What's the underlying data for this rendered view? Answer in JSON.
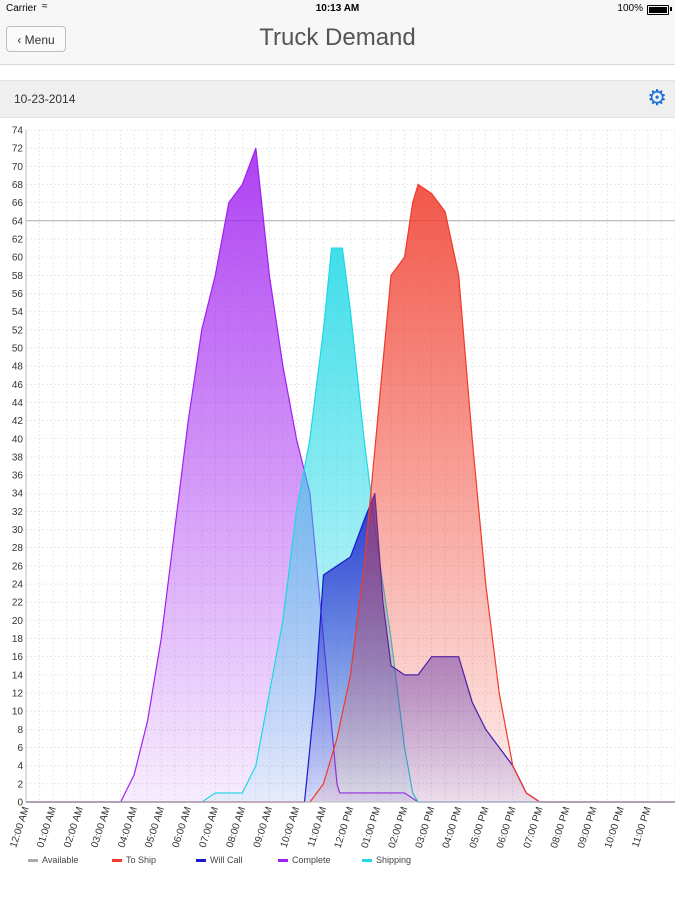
{
  "status_bar": {
    "carrier": "Carrier",
    "time": "10:13 AM",
    "battery": "100%"
  },
  "nav": {
    "back_label": "Menu",
    "title": "Truck Demand"
  },
  "date_bar": {
    "date": "10-23-2014"
  },
  "chart_data": {
    "type": "area",
    "title": "",
    "xlabel": "",
    "ylabel": "",
    "ylim": [
      0,
      74
    ],
    "y_ticks": [
      0,
      2,
      4,
      6,
      8,
      10,
      12,
      14,
      16,
      18,
      20,
      22,
      24,
      26,
      28,
      30,
      32,
      34,
      36,
      38,
      40,
      42,
      44,
      46,
      48,
      50,
      52,
      54,
      56,
      58,
      60,
      62,
      64,
      66,
      68,
      70,
      72,
      74
    ],
    "x_range": [
      0,
      24
    ],
    "x_ticks": [
      {
        "x": 0,
        "label": "12:00 AM"
      },
      {
        "x": 1,
        "label": "01:00 AM"
      },
      {
        "x": 2,
        "label": "02:00 AM"
      },
      {
        "x": 3,
        "label": "03:00 AM"
      },
      {
        "x": 4,
        "label": "04:00 AM"
      },
      {
        "x": 5,
        "label": "05:00 AM"
      },
      {
        "x": 6,
        "label": "06:00 AM"
      },
      {
        "x": 7,
        "label": "07:00 AM"
      },
      {
        "x": 8,
        "label": "08:00 AM"
      },
      {
        "x": 9,
        "label": "09:00 AM"
      },
      {
        "x": 10,
        "label": "10:00 AM"
      },
      {
        "x": 11,
        "label": "11:00 AM"
      },
      {
        "x": 12,
        "label": "12:00 PM"
      },
      {
        "x": 13,
        "label": "01:00 PM"
      },
      {
        "x": 14,
        "label": "02:00 PM"
      },
      {
        "x": 15,
        "label": "03:00 PM"
      },
      {
        "x": 16,
        "label": "04:00 PM"
      },
      {
        "x": 17,
        "label": "05:00 PM"
      },
      {
        "x": 18,
        "label": "06:00 PM"
      },
      {
        "x": 19,
        "label": "07:00 PM"
      },
      {
        "x": 20,
        "label": "08:00 PM"
      },
      {
        "x": 21,
        "label": "09:00 PM"
      },
      {
        "x": 22,
        "label": "10:00 PM"
      },
      {
        "x": 23,
        "label": "11:00 PM"
      }
    ],
    "grid": true,
    "legend_position": "bottom-left",
    "series": [
      {
        "name": "Available",
        "color": "#aaaaaa",
        "fill": false,
        "points": [
          [
            0,
            64
          ],
          [
            24,
            64
          ]
        ]
      },
      {
        "name": "Complete",
        "color": "#a020f0",
        "fill": true,
        "points": [
          [
            0,
            0
          ],
          [
            3,
            0
          ],
          [
            3.5,
            0
          ],
          [
            4,
            3
          ],
          [
            4.5,
            9
          ],
          [
            5,
            18
          ],
          [
            5.5,
            30
          ],
          [
            6,
            42
          ],
          [
            6.5,
            52
          ],
          [
            7,
            58
          ],
          [
            7.5,
            66
          ],
          [
            8,
            68
          ],
          [
            8.5,
            72
          ],
          [
            9,
            58
          ],
          [
            9.5,
            48
          ],
          [
            10,
            40
          ],
          [
            10.5,
            34
          ],
          [
            11,
            18
          ],
          [
            11.5,
            2
          ],
          [
            11.6,
            1
          ],
          [
            12,
            1
          ],
          [
            13,
            1
          ],
          [
            14,
            1
          ],
          [
            14.5,
            0
          ],
          [
            24,
            0
          ]
        ]
      },
      {
        "name": "Shipping",
        "color": "#1ed8e6",
        "fill": true,
        "points": [
          [
            0,
            0
          ],
          [
            6.5,
            0
          ],
          [
            7,
            1
          ],
          [
            7.5,
            1
          ],
          [
            8,
            1
          ],
          [
            8.5,
            4
          ],
          [
            9,
            12
          ],
          [
            9.5,
            20
          ],
          [
            10,
            32
          ],
          [
            10.5,
            40
          ],
          [
            11,
            52
          ],
          [
            11.3,
            61
          ],
          [
            11.7,
            61
          ],
          [
            12,
            54
          ],
          [
            12.5,
            40
          ],
          [
            13,
            28
          ],
          [
            13.5,
            18
          ],
          [
            14,
            6
          ],
          [
            14.3,
            1
          ],
          [
            14.5,
            0
          ],
          [
            24,
            0
          ]
        ]
      },
      {
        "name": "Will Call",
        "color": "#1a1acc",
        "fill": true,
        "points": [
          [
            0,
            0
          ],
          [
            10.3,
            0
          ],
          [
            10.7,
            12
          ],
          [
            11,
            25
          ],
          [
            11.5,
            26
          ],
          [
            12,
            27
          ],
          [
            12.5,
            31
          ],
          [
            12.9,
            34
          ],
          [
            13.2,
            22
          ],
          [
            13.5,
            15
          ],
          [
            14,
            14
          ],
          [
            14.5,
            14
          ],
          [
            15,
            16
          ],
          [
            15.5,
            16
          ],
          [
            16,
            16
          ],
          [
            16.5,
            11
          ],
          [
            17,
            8
          ],
          [
            17.5,
            6
          ],
          [
            18,
            4
          ],
          [
            18.5,
            1
          ],
          [
            19,
            0
          ],
          [
            24,
            0
          ]
        ]
      },
      {
        "name": "To Ship",
        "color": "#f03a2a",
        "fill": true,
        "points": [
          [
            0,
            0
          ],
          [
            10.5,
            0
          ],
          [
            11,
            2
          ],
          [
            11.5,
            7
          ],
          [
            12,
            14
          ],
          [
            12.5,
            26
          ],
          [
            13,
            42
          ],
          [
            13.5,
            58
          ],
          [
            14,
            60
          ],
          [
            14.3,
            66
          ],
          [
            14.5,
            68
          ],
          [
            15,
            67
          ],
          [
            15.5,
            65
          ],
          [
            16,
            58
          ],
          [
            16.5,
            40
          ],
          [
            17,
            24
          ],
          [
            17.5,
            12
          ],
          [
            18,
            4
          ],
          [
            18.5,
            1
          ],
          [
            19,
            0
          ],
          [
            24,
            0
          ]
        ]
      }
    ]
  }
}
